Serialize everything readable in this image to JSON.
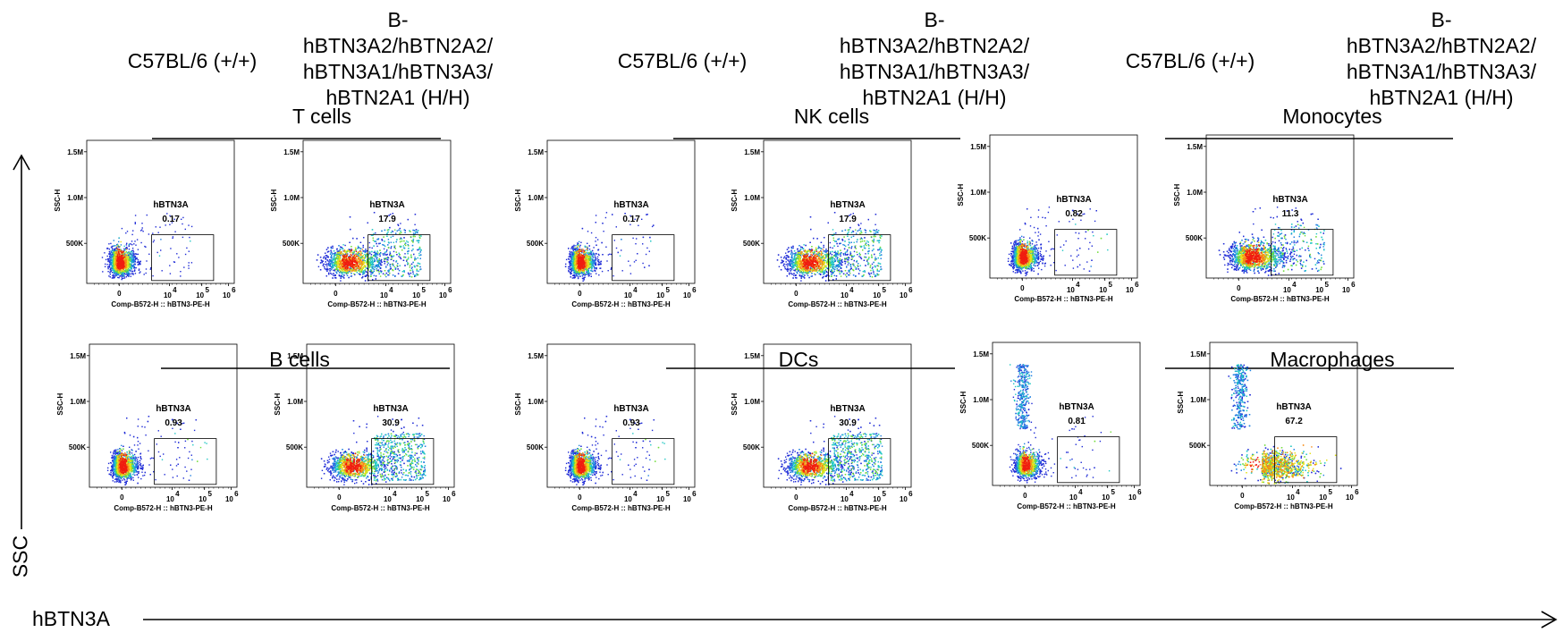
{
  "header": {
    "wt_label": "C57BL/6 (+/+)",
    "hum_label": [
      "B-",
      "hBTN3A2/hBTN2A2/",
      "hBTN3A1/hBTN3A3/",
      "hBTN2A1 (H/H)"
    ]
  },
  "axes": {
    "y_arrow_label": "SSC",
    "x_arrow_label": "hBTN3A",
    "plot_xlabel": "Comp-B572-H :: hBTN3-PE-H",
    "plot_ylabel": "SSC-H",
    "y_ticks": [
      "1.5M",
      "1.0M",
      "500K"
    ],
    "x_tick_zero": "0",
    "x_tick_decade": "10",
    "x_tick_exps": [
      "4",
      "5",
      "6"
    ]
  },
  "colors": {
    "density_low": "#1f2bd6",
    "density_mid": "#20c7c4",
    "density_high": "#f01d10",
    "axis": "#000000"
  },
  "chart_data": {
    "type": "scatter",
    "gate_label": "hBTN3A",
    "panels": [
      {
        "name": "T cells",
        "wt_value": "0.17",
        "hum_value": "17.9"
      },
      {
        "name": "NK cells",
        "wt_value": "0.17",
        "hum_value": "17.9"
      },
      {
        "name": "Monocytes",
        "wt_value": "0.82",
        "hum_value": "11.3"
      },
      {
        "name": "B cells",
        "wt_value": "0.93",
        "hum_value": "30.9"
      },
      {
        "name": "DCs",
        "wt_value": "0.93",
        "hum_value": "30.9"
      },
      {
        "name": "Macrophages",
        "wt_value": "0.81",
        "hum_value": "67.2"
      }
    ]
  }
}
